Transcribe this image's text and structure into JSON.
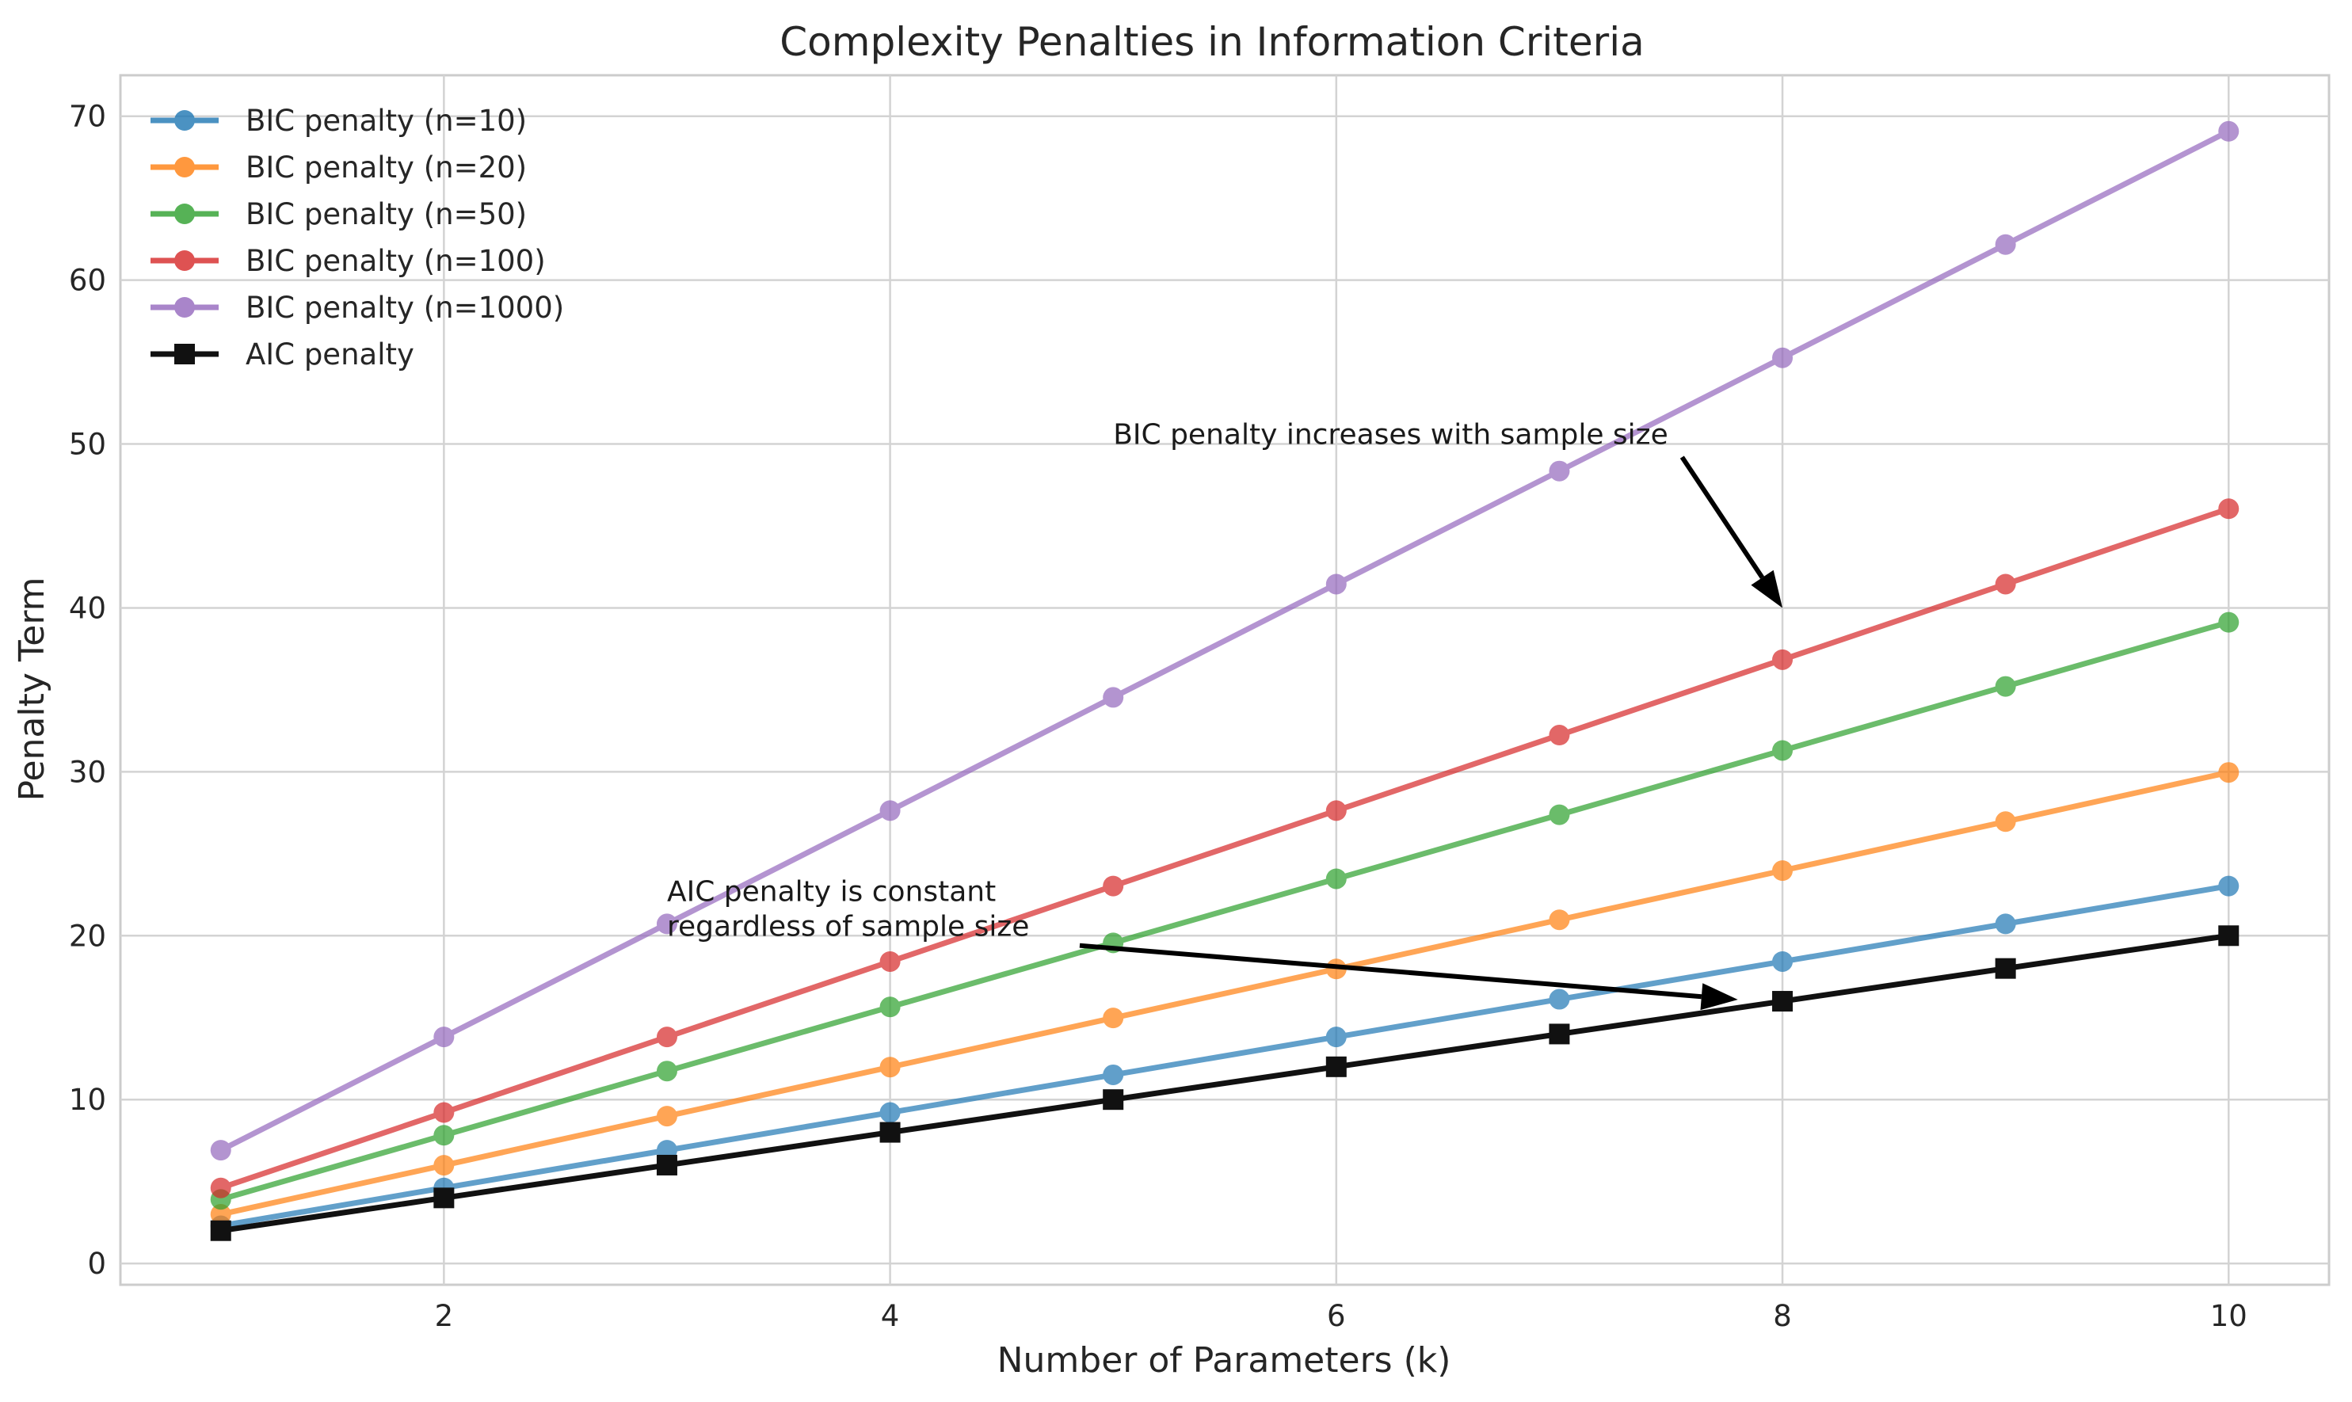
{
  "chart_data": {
    "type": "line",
    "title": "Complexity Penalties in Information Criteria",
    "xlabel": "Number of Parameters (k)",
    "ylabel": "Penalty Term",
    "xlim": [
      0.55,
      10.45
    ],
    "ylim": [
      -1.3,
      72.5
    ],
    "xticks": [
      2,
      4,
      6,
      8,
      10
    ],
    "yticks": [
      0,
      10,
      20,
      30,
      40,
      50,
      60,
      70
    ],
    "grid": true,
    "legend_position": "top-left",
    "x": [
      1,
      2,
      3,
      4,
      5,
      6,
      7,
      8,
      9,
      10
    ],
    "series": [
      {
        "name": "BIC penalty (n=10)",
        "color": "#1f77b4",
        "marker": "circle",
        "values": [
          2.3,
          4.61,
          6.91,
          9.21,
          11.51,
          13.82,
          16.12,
          18.42,
          20.72,
          23.03
        ]
      },
      {
        "name": "BIC penalty (n=20)",
        "color": "#ff7f0e",
        "marker": "circle",
        "values": [
          3.0,
          5.99,
          8.99,
          11.98,
          14.98,
          17.97,
          20.97,
          23.97,
          26.96,
          29.96
        ]
      },
      {
        "name": "BIC penalty (n=50)",
        "color": "#2ca02c",
        "marker": "circle",
        "values": [
          3.91,
          7.82,
          11.74,
          15.65,
          19.56,
          23.47,
          27.38,
          31.3,
          35.21,
          39.12
        ]
      },
      {
        "name": "BIC penalty (n=100)",
        "color": "#d62728",
        "marker": "circle",
        "values": [
          4.61,
          9.21,
          13.82,
          18.42,
          23.03,
          27.63,
          32.24,
          36.84,
          41.45,
          46.05
        ]
      },
      {
        "name": "BIC penalty (n=1000)",
        "color": "#9467bd",
        "marker": "circle",
        "values": [
          6.91,
          13.82,
          20.72,
          27.63,
          34.54,
          41.45,
          48.35,
          55.26,
          62.17,
          69.08
        ]
      },
      {
        "name": "AIC penalty",
        "color": "#111111",
        "marker": "square",
        "values": [
          2,
          4,
          6,
          8,
          10,
          12,
          14,
          16,
          18,
          20
        ]
      }
    ],
    "annotations": [
      {
        "text": "BIC penalty increases with sample size",
        "text_at": [
          5,
          50
        ],
        "arrow_to": [
          8,
          40.0
        ],
        "arrow_from": [
          7.55,
          49.2
        ]
      },
      {
        "lines": [
          "AIC penalty is constant",
          "regardless of sample size"
        ],
        "text_at": [
          3,
          20
        ],
        "arrow_to": [
          7.8,
          16.1
        ],
        "arrow_from": [
          4.85,
          19.4
        ]
      }
    ]
  }
}
